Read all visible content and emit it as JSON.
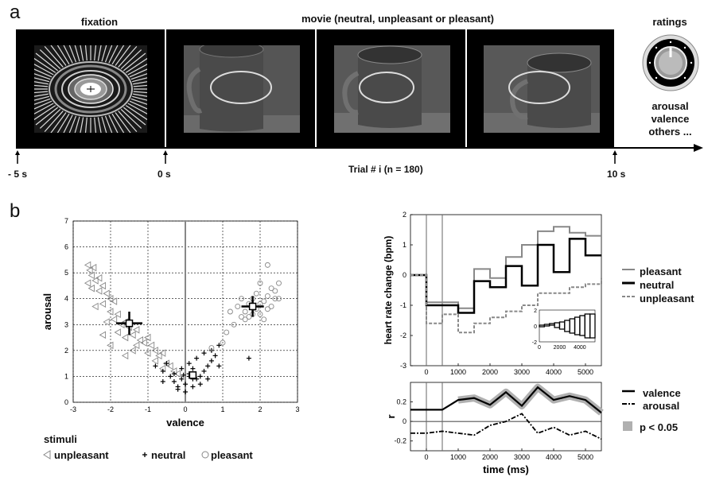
{
  "panel_a": {
    "letter": "a",
    "fixation_label": "fixation",
    "movie_label": "movie (neutral, unpleasant or pleasant)",
    "ratings_label": "ratings",
    "ratings_list": [
      "arousal",
      "valence",
      "others ..."
    ],
    "time_marks": [
      "- 5 s",
      "0 s",
      "10 s"
    ],
    "trial_label": "Trial # i (n = 180)"
  },
  "panel_b": {
    "letter": "b",
    "legend_title": "stimuli",
    "legend_items": [
      "unpleasant",
      "neutral",
      "pleasant"
    ]
  },
  "chart_data": [
    {
      "type": "scatter",
      "title": "",
      "xlabel": "valence",
      "ylabel": "arousal",
      "xlim": [
        -3,
        3
      ],
      "ylim": [
        0,
        7
      ],
      "xticks": [
        "-3",
        "-2",
        "-1",
        "0",
        "1",
        "2",
        "3"
      ],
      "yticks": [
        "0",
        "1",
        "2",
        "3",
        "4",
        "5",
        "6",
        "7"
      ],
      "grid": true,
      "series": [
        {
          "name": "unpleasant",
          "marker": "triangle-left",
          "color": "#888888",
          "points": [
            [
              -2.6,
              5.3
            ],
            [
              -2.55,
              5.1
            ],
            [
              -2.5,
              4.9
            ],
            [
              -2.45,
              5.2
            ],
            [
              -2.4,
              4.7
            ],
            [
              -2.3,
              4.8
            ],
            [
              -2.2,
              4.5
            ],
            [
              -2.3,
              4.3
            ],
            [
              -2.5,
              4.4
            ],
            [
              -2.1,
              4.2
            ],
            [
              -2.0,
              4.0
            ],
            [
              -1.9,
              3.9
            ],
            [
              -2.2,
              3.8
            ],
            [
              -2.4,
              3.7
            ],
            [
              -2.0,
              3.5
            ],
            [
              -1.8,
              3.4
            ],
            [
              -1.9,
              3.2
            ],
            [
              -2.1,
              3.1
            ],
            [
              -1.7,
              3.0
            ],
            [
              -1.6,
              3.1
            ],
            [
              -1.5,
              2.9
            ],
            [
              -1.8,
              2.7
            ],
            [
              -1.4,
              2.6
            ],
            [
              -1.3,
              2.8
            ],
            [
              -1.6,
              2.5
            ],
            [
              -1.2,
              2.4
            ],
            [
              -1.0,
              2.5
            ],
            [
              -1.1,
              2.3
            ],
            [
              -1.3,
              2.2
            ],
            [
              -0.9,
              2.2
            ],
            [
              -0.8,
              2.0
            ],
            [
              -1.0,
              1.9
            ],
            [
              -0.7,
              1.8
            ],
            [
              -0.6,
              1.9
            ],
            [
              -0.8,
              1.6
            ],
            [
              -0.5,
              1.5
            ],
            [
              -0.4,
              1.4
            ],
            [
              -0.3,
              1.2
            ],
            [
              -1.6,
              1.8
            ],
            [
              -2.0,
              2.2
            ],
            [
              -0.6,
              1.3
            ],
            [
              -0.2,
              1.1
            ],
            [
              -1.4,
              2.0
            ],
            [
              -2.2,
              2.6
            ],
            [
              -2.6,
              4.6
            ]
          ],
          "mean": [
            -1.5,
            3.05
          ],
          "sd": [
            0.35,
            0.45
          ]
        },
        {
          "name": "neutral",
          "marker": "star",
          "color": "#000000",
          "points": [
            [
              -0.8,
              1.4
            ],
            [
              -0.6,
              1.2
            ],
            [
              -0.5,
              1.5
            ],
            [
              -0.4,
              1.0
            ],
            [
              -0.3,
              0.8
            ],
            [
              -0.2,
              0.6
            ],
            [
              -0.1,
              0.9
            ],
            [
              0.0,
              0.7
            ],
            [
              0.1,
              1.1
            ],
            [
              0.2,
              1.3
            ],
            [
              0.3,
              0.9
            ],
            [
              0.4,
              1.0
            ],
            [
              0.5,
              1.2
            ],
            [
              0.6,
              1.4
            ],
            [
              0.7,
              1.6
            ],
            [
              0.8,
              1.8
            ],
            [
              0.9,
              2.2
            ],
            [
              0.7,
              2.0
            ],
            [
              0.5,
              1.9
            ],
            [
              0.3,
              1.7
            ],
            [
              0.1,
              1.5
            ],
            [
              -0.1,
              1.3
            ],
            [
              -0.3,
              1.1
            ],
            [
              -0.2,
              0.5
            ],
            [
              0.0,
              0.4
            ],
            [
              0.2,
              0.6
            ],
            [
              0.4,
              0.7
            ],
            [
              0.6,
              0.9
            ],
            [
              -0.6,
              0.8
            ],
            [
              1.7,
              1.7
            ],
            [
              0.9,
              1.4
            ],
            [
              0.2,
              0.9
            ],
            [
              0.1,
              1.0
            ],
            [
              -0.05,
              1.05
            ]
          ],
          "mean": [
            0.2,
            1.05
          ],
          "sd": [
            0.1,
            0.1
          ]
        },
        {
          "name": "pleasant",
          "marker": "circle",
          "color": "#888888",
          "points": [
            [
              1.1,
              2.7
            ],
            [
              1.0,
              2.3
            ],
            [
              1.3,
              3.0
            ],
            [
              1.5,
              3.3
            ],
            [
              1.6,
              3.5
            ],
            [
              1.7,
              3.8
            ],
            [
              1.8,
              4.0
            ],
            [
              1.9,
              3.6
            ],
            [
              2.0,
              3.4
            ],
            [
              2.1,
              3.9
            ],
            [
              2.2,
              4.1
            ],
            [
              2.3,
              3.7
            ],
            [
              2.4,
              4.3
            ],
            [
              2.0,
              4.6
            ],
            [
              2.2,
              5.3
            ],
            [
              2.5,
              4.6
            ],
            [
              2.4,
              4.0
            ],
            [
              1.4,
              3.7
            ],
            [
              1.6,
              3.2
            ],
            [
              1.8,
              3.4
            ],
            [
              2.0,
              3.8
            ],
            [
              2.3,
              4.4
            ],
            [
              2.1,
              3.2
            ],
            [
              1.9,
              4.2
            ],
            [
              1.5,
              4.0
            ],
            [
              1.7,
              3.3
            ],
            [
              2.2,
              3.6
            ],
            [
              2.5,
              4.0
            ],
            [
              0.7,
              2.1
            ],
            [
              1.2,
              3.5
            ]
          ],
          "mean": [
            1.8,
            3.7
          ],
          "sd": [
            0.3,
            0.4
          ]
        }
      ]
    },
    {
      "type": "line",
      "title": "",
      "xlabel": "",
      "ylabel": "heart rate change (bpm)",
      "xlim": [
        -500,
        5500
      ],
      "ylim": [
        -3,
        2
      ],
      "xticks": [
        "0",
        "1000",
        "2000",
        "3000",
        "4000",
        "5000"
      ],
      "yticks": [
        "-3",
        "-2",
        "-1",
        "0",
        "1",
        "2"
      ],
      "step": true,
      "series": [
        {
          "name": "pleasant",
          "style": "solid-gray",
          "x": [
            -500,
            0,
            500,
            1000,
            1500,
            2000,
            2500,
            3000,
            3500,
            4000,
            4500,
            5000,
            5500
          ],
          "values": [
            0,
            -0.9,
            -0.9,
            -1.1,
            0.2,
            -0.1,
            0.6,
            1.0,
            1.45,
            1.6,
            1.4,
            1.3,
            1.3
          ]
        },
        {
          "name": "neutral",
          "style": "solid-black",
          "x": [
            -500,
            0,
            500,
            1000,
            1500,
            2000,
            2500,
            3000,
            3500,
            4000,
            4500,
            5000,
            5500
          ],
          "values": [
            0,
            -1.0,
            -1.0,
            -1.25,
            -0.2,
            -0.4,
            0.3,
            -0.35,
            1.0,
            0.1,
            1.2,
            0.65,
            0.65
          ]
        },
        {
          "name": "unpleasant",
          "style": "dashed-gray",
          "x": [
            -500,
            0,
            500,
            1000,
            1500,
            2000,
            2500,
            3000,
            3500,
            4000,
            4500,
            5000,
            5500
          ],
          "values": [
            0,
            -1.6,
            -1.3,
            -1.9,
            -1.6,
            -1.4,
            -1.2,
            -1.0,
            -0.6,
            -0.6,
            -0.4,
            -0.3,
            -0.1
          ]
        }
      ],
      "inset": {
        "xlim": [
          0,
          5500
        ],
        "ylim": [
          -2,
          2
        ],
        "xticks": [
          "0",
          "2000",
          "4000"
        ],
        "yticks": [
          "-2",
          "0",
          "2"
        ],
        "x": [
          0,
          500,
          1000,
          1500,
          2000,
          2500,
          3000,
          3500,
          4000,
          4500,
          5000
        ],
        "values": [
          -0.1,
          0.0,
          0.1,
          -0.2,
          -0.4,
          -0.7,
          -0.9,
          -1.1,
          -1.2,
          -1.5,
          -1.5
        ],
        "tops": [
          0.1,
          0.2,
          0.3,
          0.4,
          0.5,
          0.7,
          0.9,
          1.1,
          1.3,
          1.5,
          1.5
        ]
      }
    },
    {
      "type": "line",
      "title": "",
      "xlabel": "time (ms)",
      "ylabel": "r",
      "xlim": [
        -500,
        5500
      ],
      "ylim": [
        -0.3,
        0.4
      ],
      "xticks": [
        "0",
        "1000",
        "2000",
        "3000",
        "4000",
        "5000"
      ],
      "yticks": [
        "-0.2",
        "0",
        "0.2"
      ],
      "series": [
        {
          "name": "valence",
          "style": "solid-black",
          "x": [
            -500,
            0,
            500,
            1000,
            1500,
            2000,
            2500,
            3000,
            3500,
            4000,
            4500,
            5000,
            5500
          ],
          "values": [
            0.12,
            0.12,
            0.12,
            0.22,
            0.24,
            0.17,
            0.3,
            0.16,
            0.35,
            0.22,
            0.26,
            0.22,
            0.09
          ],
          "significant_from": 1000
        },
        {
          "name": "arousal",
          "style": "dashdot-black",
          "x": [
            -500,
            0,
            500,
            1000,
            1500,
            2000,
            2500,
            3000,
            3500,
            4000,
            4500,
            5000,
            5500
          ],
          "values": [
            -0.12,
            -0.12,
            -0.1,
            -0.12,
            -0.14,
            -0.04,
            0.0,
            0.08,
            -0.12,
            -0.06,
            -0.14,
            -0.1,
            -0.18
          ]
        }
      ],
      "legend_extra": "p < 0.05",
      "shade_color": "#b0b0b0"
    }
  ],
  "hr_legend": [
    "pleasant",
    "neutral",
    "unpleasant"
  ],
  "r_legend": [
    "valence",
    "arousal"
  ]
}
